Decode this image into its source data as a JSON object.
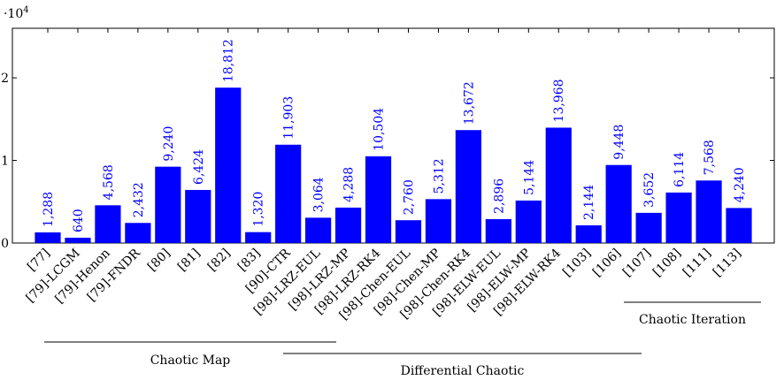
{
  "chart_data": {
    "type": "bar",
    "multiplier_label": "·10",
    "multiplier_exp": "4",
    "categories": [
      "[77]",
      "[79]-LCGM",
      "[79]-Henon",
      "[79]-FNDR",
      "[80]",
      "[81]",
      "[82]",
      "[83]",
      "[90]-CTR",
      "[98]-LRZ-EUL",
      "[98]-LRZ-MP",
      "[98]-LRZ-RK4",
      "[98]-Chen-EUL",
      "[98]-Chen-MP",
      "[98]-Chen-RK4",
      "[98]-ELW-EUL",
      "[98]-ELW-MP",
      "[98]-ELW-RK4",
      "[103]",
      "[106]",
      "[107]",
      "[108]",
      "[111]",
      "[113]"
    ],
    "values": [
      1288,
      640,
      4568,
      2432,
      9240,
      6424,
      18812,
      1320,
      11903,
      3064,
      4288,
      10504,
      2760,
      5312,
      13672,
      2896,
      5144,
      13968,
      2144,
      9448,
      3652,
      6114,
      7568,
      4240
    ],
    "value_labels": [
      "1,288",
      "640",
      "4,568",
      "2,432",
      "9,240",
      "6,424",
      "18,812",
      "1,320",
      "11,903",
      "3,064",
      "4,288",
      "10,504",
      "2,760",
      "5,312",
      "13,672",
      "2,896",
      "5,144",
      "13,968",
      "2,144",
      "9,448",
      "3,652",
      "6,114",
      "7,568",
      "4,240"
    ],
    "yticks": [
      0,
      10000,
      20000
    ],
    "ytick_labels": [
      "0",
      "1",
      "2"
    ],
    "ylim": [
      0,
      26000
    ],
    "bar_color": "#0000ff",
    "groups": [
      {
        "label": "Chaotic Map",
        "from": 0,
        "to": 7
      },
      {
        "label": "Differential Chaotic",
        "from": 8,
        "to": 17
      },
      {
        "label": "Chaotic Iteration",
        "from": 20,
        "to": 23
      }
    ]
  }
}
